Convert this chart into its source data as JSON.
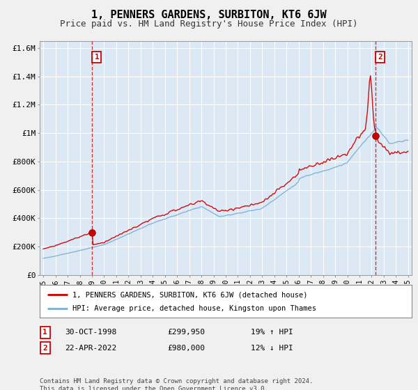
{
  "title": "1, PENNERS GARDENS, SURBITON, KT6 6JW",
  "subtitle": "Price paid vs. HM Land Registry's House Price Index (HPI)",
  "bg_color": "#f0f0f0",
  "plot_bg_color": "#dce9f5",
  "grid_color": "#ffffff",
  "red_line_color": "#cc0000",
  "blue_line_color": "#7aafd4",
  "vline_color": "#cc0000",
  "ylim": [
    0,
    1650000
  ],
  "yticks": [
    0,
    200000,
    400000,
    600000,
    800000,
    1000000,
    1200000,
    1400000,
    1600000
  ],
  "ytick_labels": [
    "£0",
    "£200K",
    "£400K",
    "£600K",
    "£800K",
    "£1M",
    "£1.2M",
    "£1.4M",
    "£1.6M"
  ],
  "xlim_start": 1994.7,
  "xlim_end": 2025.3,
  "marker1_x": 1999.0,
  "marker1_y": 299950,
  "marker2_x": 2022.3,
  "marker2_y": 980000,
  "legend_label1": "1, PENNERS GARDENS, SURBITON, KT6 6JW (detached house)",
  "legend_label2": "HPI: Average price, detached house, Kingston upon Thames",
  "table_row1": [
    "1",
    "30-OCT-1998",
    "£299,950",
    "19% ↑ HPI"
  ],
  "table_row2": [
    "2",
    "22-APR-2022",
    "£980,000",
    "12% ↓ HPI"
  ],
  "footnote": "Contains HM Land Registry data © Crown copyright and database right 2024.\nThis data is licensed under the Open Government Licence v3.0.",
  "title_fontsize": 11,
  "subtitle_fontsize": 9,
  "tick_fontsize": 8
}
